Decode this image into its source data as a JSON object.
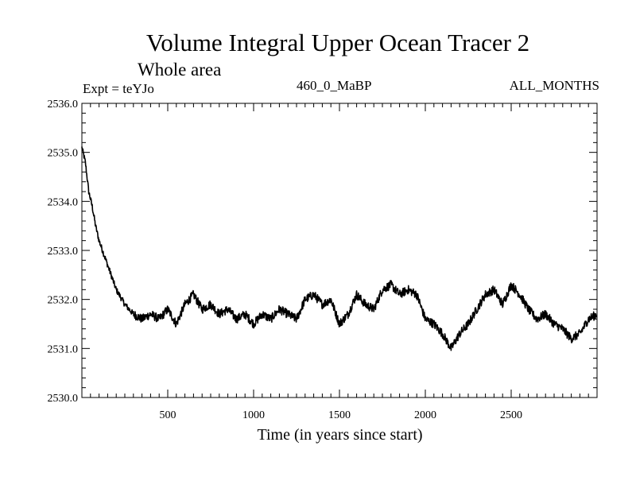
{
  "chart_data": {
    "type": "line",
    "title": "Volume Integral Upper Ocean Tracer 2",
    "subtitle": "Whole area",
    "annotations": {
      "left": "Expt = teYJo",
      "center": "460_0_MaBP",
      "right": "ALL_MONTHS"
    },
    "xlabel": "Time (in years since start)",
    "ylabel": "",
    "xlim": [
      0,
      3000
    ],
    "ylim": [
      2530.0,
      2536.0
    ],
    "xticks": [
      500,
      1000,
      1500,
      2000,
      2500
    ],
    "xtick_labels": [
      "500",
      "1000",
      "1500",
      "2000",
      "2500"
    ],
    "yticks": [
      2530.0,
      2531.0,
      2532.0,
      2533.0,
      2534.0,
      2535.0,
      2536.0
    ],
    "ytick_labels": [
      "2530.0",
      "2531.0",
      "2532.0",
      "2533.0",
      "2534.0",
      "2535.0",
      "2536.0"
    ],
    "grid": false,
    "series": [
      {
        "name": "Tracer 2",
        "color": "#000000",
        "x": [
          0,
          20,
          40,
          60,
          80,
          100,
          130,
          160,
          200,
          250,
          300,
          350,
          400,
          450,
          500,
          550,
          600,
          650,
          700,
          750,
          800,
          850,
          900,
          950,
          1000,
          1050,
          1100,
          1150,
          1200,
          1250,
          1300,
          1350,
          1400,
          1450,
          1500,
          1550,
          1600,
          1650,
          1700,
          1750,
          1800,
          1850,
          1900,
          1950,
          2000,
          2050,
          2100,
          2150,
          2200,
          2250,
          2300,
          2350,
          2400,
          2450,
          2500,
          2550,
          2600,
          2650,
          2700,
          2750,
          2800,
          2850,
          2900,
          2950,
          3000
        ],
        "values": [
          2535.1,
          2534.8,
          2534.2,
          2533.9,
          2533.5,
          2533.2,
          2532.9,
          2532.6,
          2532.2,
          2531.9,
          2531.7,
          2531.6,
          2531.7,
          2531.6,
          2531.8,
          2531.5,
          2531.9,
          2532.1,
          2531.8,
          2531.9,
          2531.7,
          2531.8,
          2531.6,
          2531.7,
          2531.5,
          2531.7,
          2531.6,
          2531.8,
          2531.7,
          2531.6,
          2532.0,
          2532.1,
          2531.9,
          2532.0,
          2531.5,
          2531.7,
          2532.1,
          2531.9,
          2531.8,
          2532.2,
          2532.3,
          2532.1,
          2532.2,
          2532.1,
          2531.6,
          2531.5,
          2531.3,
          2531.0,
          2531.3,
          2531.5,
          2531.8,
          2532.1,
          2532.2,
          2531.9,
          2532.3,
          2532.1,
          2531.8,
          2531.6,
          2531.7,
          2531.5,
          2531.4,
          2531.2,
          2531.3,
          2531.6,
          2531.7
        ]
      }
    ]
  }
}
